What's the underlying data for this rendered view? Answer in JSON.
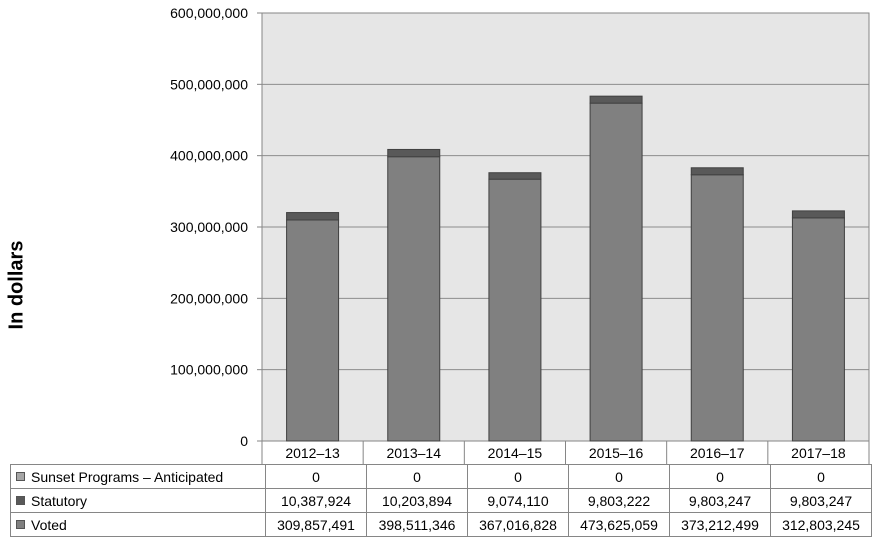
{
  "chart_data": {
    "type": "bar",
    "stacked": true,
    "ylabel": "In dollars",
    "ylim": [
      0,
      600000000
    ],
    "yticks": [
      "0",
      "100,000,000",
      "200,000,000",
      "300,000,000",
      "400,000,000",
      "500,000,000",
      "600,000,000"
    ],
    "grid": true,
    "categories": [
      "2012–13",
      "2013–14",
      "2014–15",
      "2015–16",
      "2016–17",
      "2017–18"
    ],
    "series": [
      {
        "name": "Sunset Programs – Anticipated",
        "color": "#a6a6a6",
        "values": [
          0,
          0,
          0,
          0,
          0,
          0
        ],
        "labels": [
          "0",
          "0",
          "0",
          "0",
          "0",
          "0"
        ]
      },
      {
        "name": "Statutory",
        "color": "#595959",
        "values": [
          10387924,
          10203894,
          9074110,
          9803222,
          9803247,
          9803247
        ],
        "labels": [
          "10,387,924",
          "10,203,894",
          "9,074,110",
          "9,803,222",
          "9,803,247",
          "9,803,247"
        ]
      },
      {
        "name": "Voted",
        "color": "#808080",
        "values": [
          309857491,
          398511346,
          367016828,
          473625059,
          373212499,
          312803245
        ],
        "labels": [
          "309,857,491",
          "398,511,346",
          "367,016,828",
          "473,625,059",
          "373,212,499",
          "312,803,245"
        ]
      }
    ],
    "legend": "data-table"
  }
}
